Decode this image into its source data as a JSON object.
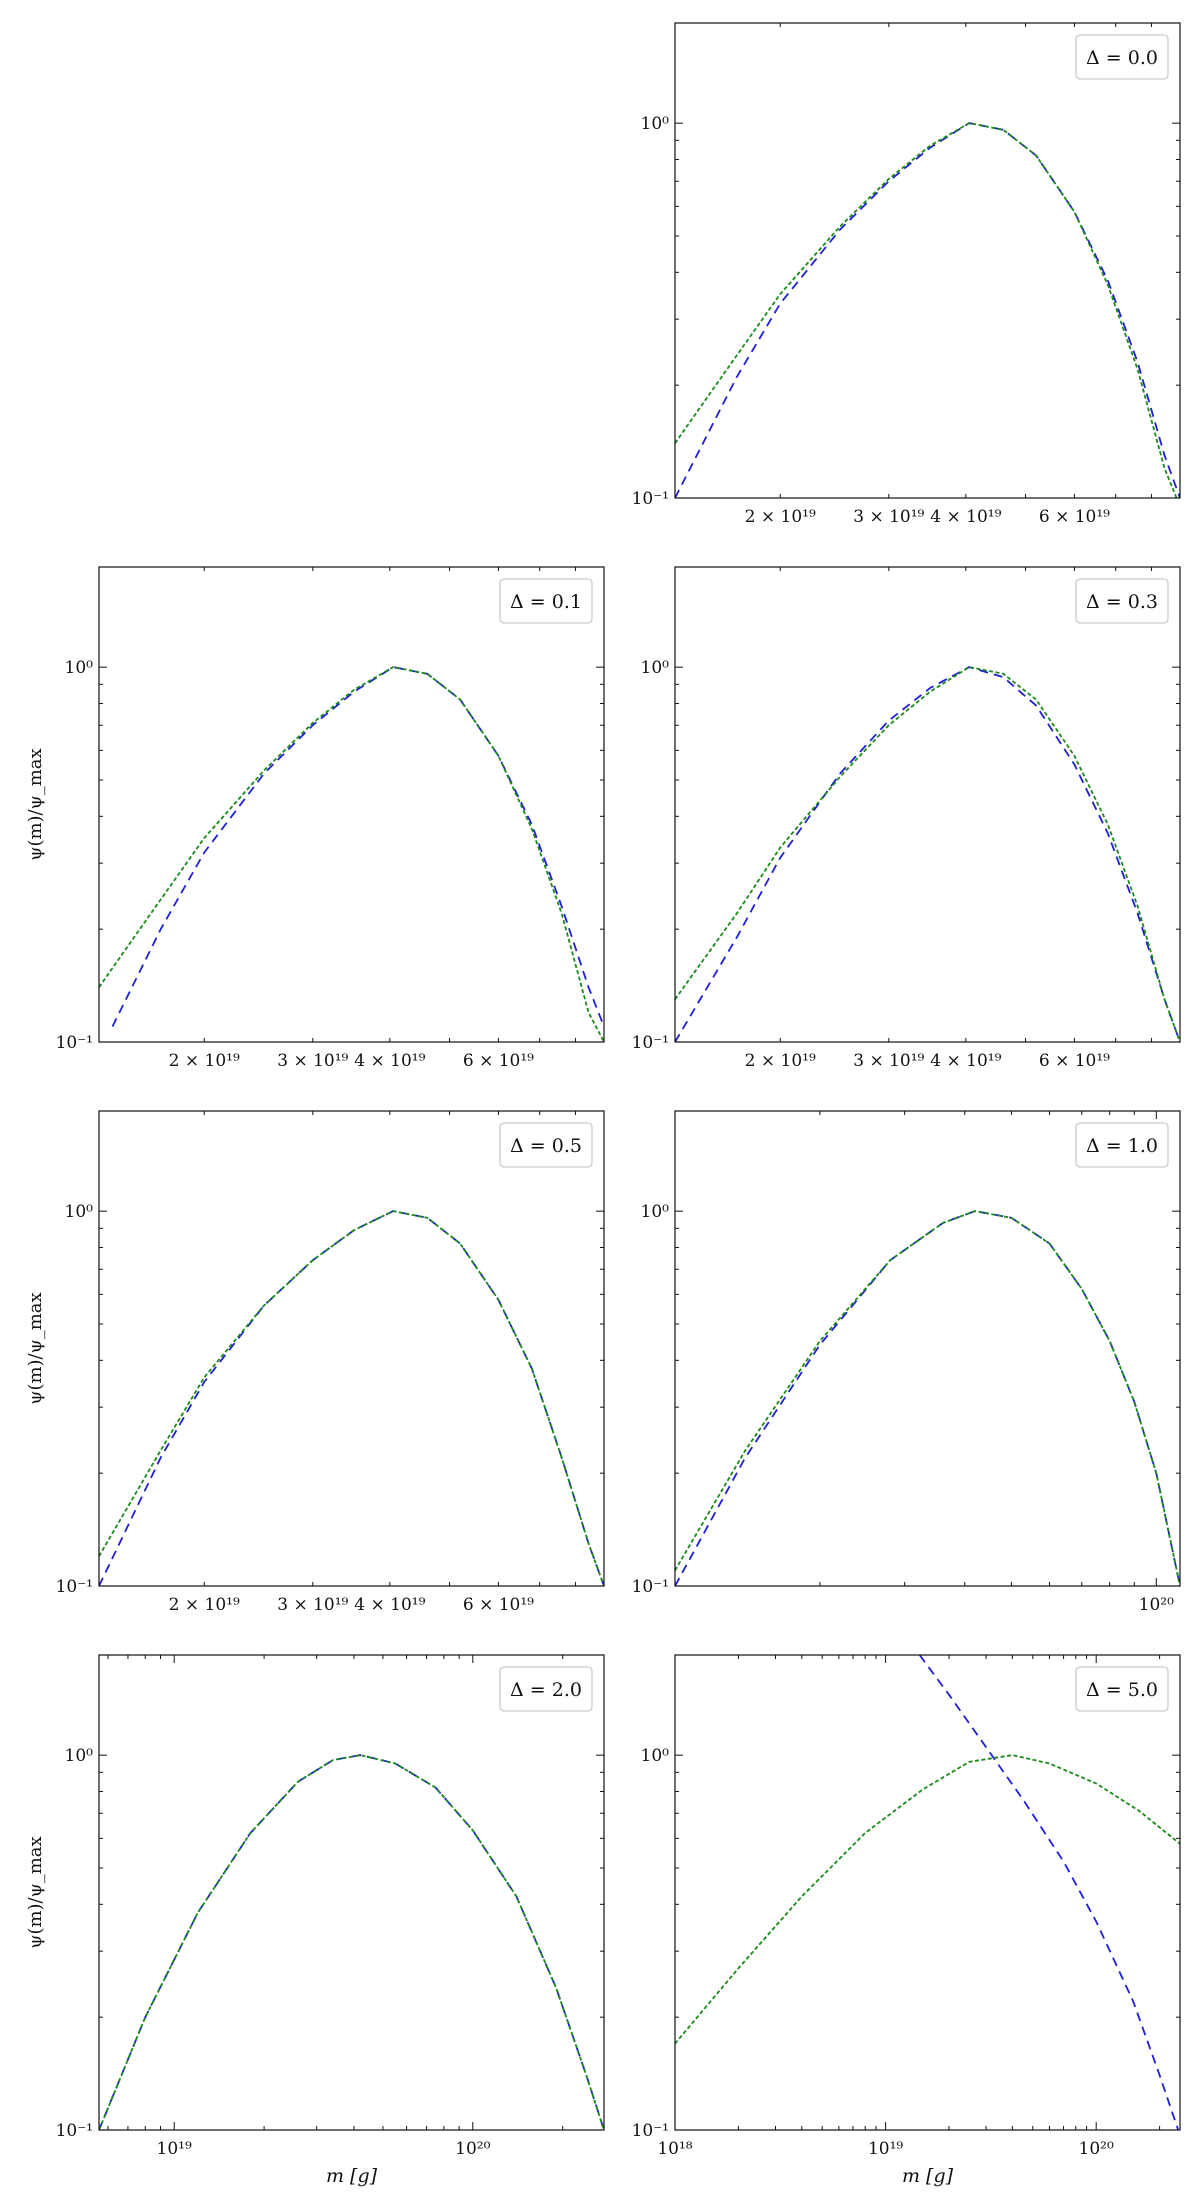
{
  "figure": {
    "ylabel": "ψ(m)/ψ_max",
    "xlabel": "m [g]"
  },
  "chart_data": [
    {
      "type": "line",
      "legend": "Δ = 0.0",
      "legend_position": "top-right",
      "xscale": "log",
      "yscale": "log",
      "xlim": [
        1.35e+19,
        8.9e+19
      ],
      "ylim": [
        0.1,
        1.85
      ],
      "show_ylabel": false,
      "show_xlabel": false,
      "xticks": [
        {
          "value": 2e+19,
          "label": "2 × 10¹⁹"
        },
        {
          "value": 3e+19,
          "label": "3 × 10¹⁹"
        },
        {
          "value": 4e+19,
          "label": "4 × 10¹⁹"
        },
        {
          "value": 6e+19,
          "label": "6 × 10¹⁹"
        }
      ],
      "yticks": [
        {
          "value": 0.1,
          "label": "10⁻¹"
        },
        {
          "value": 1,
          "label": "10⁰"
        }
      ],
      "series": [
        {
          "color": "#1f1fd6",
          "dash": "long",
          "x": [
            1.35e+19,
            1.7e+19,
            2e+19,
            2.5e+19,
            3e+19,
            3.5e+19,
            4.05e+19,
            4.6e+19,
            5.2e+19,
            6e+19,
            6.8e+19,
            7.6e+19,
            8.4e+19,
            8.9e+19
          ],
          "y": [
            0.1,
            0.21,
            0.33,
            0.52,
            0.7,
            0.86,
            1.0,
            0.96,
            0.82,
            0.58,
            0.38,
            0.23,
            0.13,
            0.1
          ]
        },
        {
          "color": "#1a8a1a",
          "dash": "short",
          "x": [
            1.35e+19,
            1.7e+19,
            2e+19,
            2.5e+19,
            3e+19,
            3.5e+19,
            4.05e+19,
            4.6e+19,
            5.2e+19,
            6e+19,
            6.8e+19,
            7.6e+19,
            8.4e+19,
            8.9e+19
          ],
          "y": [
            0.14,
            0.24,
            0.35,
            0.53,
            0.71,
            0.87,
            1.0,
            0.96,
            0.82,
            0.58,
            0.37,
            0.22,
            0.12,
            0.095
          ]
        }
      ]
    },
    {
      "type": "line",
      "legend": "Δ = 0.1",
      "legend_position": "top-right",
      "xscale": "log",
      "yscale": "log",
      "xlim": [
        1.35e+19,
        8.9e+19
      ],
      "ylim": [
        0.1,
        1.85
      ],
      "show_ylabel": true,
      "show_xlabel": false,
      "xticks": [
        {
          "value": 2e+19,
          "label": "2 × 10¹⁹"
        },
        {
          "value": 3e+19,
          "label": "3 × 10¹⁹"
        },
        {
          "value": 4e+19,
          "label": "4 × 10¹⁹"
        },
        {
          "value": 6e+19,
          "label": "6 × 10¹⁹"
        }
      ],
      "yticks": [
        {
          "value": 0.1,
          "label": "10⁻¹"
        },
        {
          "value": 1,
          "label": "10⁰"
        }
      ],
      "series": [
        {
          "color": "#1f1fd6",
          "dash": "long",
          "x": [
            1.42e+19,
            1.7e+19,
            2e+19,
            2.5e+19,
            3e+19,
            3.5e+19,
            4.05e+19,
            4.6e+19,
            5.2e+19,
            6e+19,
            6.8e+19,
            7.6e+19,
            8.4e+19,
            8.9e+19
          ],
          "y": [
            0.11,
            0.2,
            0.32,
            0.52,
            0.7,
            0.86,
            1.0,
            0.96,
            0.82,
            0.58,
            0.38,
            0.23,
            0.14,
            0.11
          ]
        },
        {
          "color": "#1a8a1a",
          "dash": "short",
          "x": [
            1.35e+19,
            1.7e+19,
            2e+19,
            2.5e+19,
            3e+19,
            3.5e+19,
            4.05e+19,
            4.6e+19,
            5.2e+19,
            6e+19,
            6.8e+19,
            7.6e+19,
            8.4e+19,
            8.9e+19
          ],
          "y": [
            0.14,
            0.24,
            0.35,
            0.53,
            0.71,
            0.87,
            1.0,
            0.96,
            0.82,
            0.58,
            0.37,
            0.22,
            0.12,
            0.1
          ]
        }
      ]
    },
    {
      "type": "line",
      "legend": "Δ = 0.3",
      "legend_position": "top-right",
      "xscale": "log",
      "yscale": "log",
      "xlim": [
        1.35e+19,
        8.9e+19
      ],
      "ylim": [
        0.1,
        1.85
      ],
      "show_ylabel": false,
      "show_xlabel": false,
      "xticks": [
        {
          "value": 2e+19,
          "label": "2 × 10¹⁹"
        },
        {
          "value": 3e+19,
          "label": "3 × 10¹⁹"
        },
        {
          "value": 4e+19,
          "label": "4 × 10¹⁹"
        },
        {
          "value": 6e+19,
          "label": "6 × 10¹⁹"
        }
      ],
      "yticks": [
        {
          "value": 0.1,
          "label": "10⁻¹"
        },
        {
          "value": 1,
          "label": "10⁰"
        }
      ],
      "series": [
        {
          "color": "#1f1fd6",
          "dash": "long",
          "x": [
            1.35e+19,
            1.7e+19,
            2e+19,
            2.5e+19,
            3e+19,
            3.5e+19,
            4.05e+19,
            4.6e+19,
            5.2e+19,
            6e+19,
            6.8e+19,
            7.6e+19,
            8.4e+19,
            8.9e+19
          ],
          "y": [
            0.1,
            0.19,
            0.31,
            0.52,
            0.72,
            0.88,
            1.0,
            0.94,
            0.79,
            0.55,
            0.36,
            0.22,
            0.13,
            0.1
          ]
        },
        {
          "color": "#1a8a1a",
          "dash": "short",
          "x": [
            1.35e+19,
            1.7e+19,
            2e+19,
            2.5e+19,
            3e+19,
            3.5e+19,
            4.05e+19,
            4.6e+19,
            5.2e+19,
            6e+19,
            6.8e+19,
            7.6e+19,
            8.4e+19,
            8.9e+19
          ],
          "y": [
            0.13,
            0.22,
            0.33,
            0.51,
            0.7,
            0.86,
            1.0,
            0.96,
            0.82,
            0.58,
            0.38,
            0.23,
            0.13,
            0.1
          ]
        }
      ]
    },
    {
      "type": "line",
      "legend": "Δ = 0.5",
      "legend_position": "top-right",
      "xscale": "log",
      "yscale": "log",
      "xlim": [
        1.35e+19,
        8.9e+19
      ],
      "ylim": [
        0.1,
        1.85
      ],
      "show_ylabel": true,
      "show_xlabel": false,
      "xticks": [
        {
          "value": 2e+19,
          "label": "2 × 10¹⁹"
        },
        {
          "value": 3e+19,
          "label": "3 × 10¹⁹"
        },
        {
          "value": 4e+19,
          "label": "4 × 10¹⁹"
        },
        {
          "value": 6e+19,
          "label": "6 × 10¹⁹"
        }
      ],
      "yticks": [
        {
          "value": 0.1,
          "label": "10⁻¹"
        },
        {
          "value": 1,
          "label": "10⁰"
        }
      ],
      "series": [
        {
          "color": "#1f1fd6",
          "dash": "long",
          "x": [
            1.35e+19,
            1.7e+19,
            2e+19,
            2.5e+19,
            3e+19,
            3.5e+19,
            4.05e+19,
            4.6e+19,
            5.2e+19,
            6e+19,
            6.8e+19,
            7.6e+19,
            8.4e+19,
            8.9e+19
          ],
          "y": [
            0.1,
            0.22,
            0.35,
            0.56,
            0.74,
            0.89,
            1.0,
            0.96,
            0.82,
            0.58,
            0.38,
            0.22,
            0.13,
            0.1
          ]
        },
        {
          "color": "#1a8a1a",
          "dash": "short",
          "x": [
            1.35e+19,
            1.7e+19,
            2e+19,
            2.5e+19,
            3e+19,
            3.5e+19,
            4.05e+19,
            4.6e+19,
            5.2e+19,
            6e+19,
            6.8e+19,
            7.6e+19,
            8.4e+19,
            8.9e+19
          ],
          "y": [
            0.12,
            0.23,
            0.36,
            0.56,
            0.74,
            0.89,
            1.0,
            0.96,
            0.82,
            0.58,
            0.38,
            0.22,
            0.13,
            0.1
          ]
        }
      ]
    },
    {
      "type": "line",
      "legend": "Δ = 1.0",
      "legend_position": "top-right",
      "xscale": "log",
      "yscale": "log",
      "xlim": [
        1e+19,
        1.12e+20
      ],
      "ylim": [
        0.1,
        1.85
      ],
      "show_ylabel": false,
      "show_xlabel": false,
      "xticks": [
        {
          "value": 1e+20,
          "label": "10²⁰"
        }
      ],
      "yticks": [
        {
          "value": 0.1,
          "label": "10⁻¹"
        },
        {
          "value": 1,
          "label": "10⁰"
        }
      ],
      "series": [
        {
          "color": "#1f1fd6",
          "dash": "long",
          "x": [
            1e+19,
            1.4e+19,
            2e+19,
            2.8e+19,
            3.6e+19,
            4.2e+19,
            5e+19,
            6e+19,
            7e+19,
            8e+19,
            9e+19,
            1e+20,
            1.12e+20
          ],
          "y": [
            0.1,
            0.22,
            0.44,
            0.74,
            0.93,
            1.0,
            0.96,
            0.82,
            0.62,
            0.45,
            0.31,
            0.2,
            0.1
          ]
        },
        {
          "color": "#1a8a1a",
          "dash": "short",
          "x": [
            1e+19,
            1.4e+19,
            2e+19,
            2.8e+19,
            3.6e+19,
            4.2e+19,
            5e+19,
            6e+19,
            7e+19,
            8e+19,
            9e+19,
            1e+20,
            1.12e+20
          ],
          "y": [
            0.11,
            0.23,
            0.45,
            0.74,
            0.93,
            1.0,
            0.96,
            0.82,
            0.62,
            0.45,
            0.31,
            0.2,
            0.1
          ]
        }
      ]
    },
    {
      "type": "line",
      "legend": "Δ = 2.0",
      "legend_position": "top-right",
      "xscale": "log",
      "yscale": "log",
      "xlim": [
        5.6e+18,
        2.75e+20
      ],
      "ylim": [
        0.1,
        1.85
      ],
      "show_ylabel": true,
      "show_xlabel": true,
      "xticks": [
        {
          "value": 1e+19,
          "label": "10¹⁹"
        },
        {
          "value": 1e+20,
          "label": "10²⁰"
        }
      ],
      "yticks": [
        {
          "value": 0.1,
          "label": "10⁻¹"
        },
        {
          "value": 1,
          "label": "10⁰"
        }
      ],
      "series": [
        {
          "color": "#1f1fd6",
          "dash": "long",
          "x": [
            5.6e+18,
            8e+18,
            1.2e+19,
            1.8e+19,
            2.6e+19,
            3.4e+19,
            4.2e+19,
            5.5e+19,
            7.5e+19,
            1e+20,
            1.4e+20,
            1.9e+20,
            2.4e+20,
            2.75e+20
          ],
          "y": [
            0.1,
            0.2,
            0.38,
            0.62,
            0.85,
            0.97,
            1.0,
            0.95,
            0.82,
            0.63,
            0.42,
            0.24,
            0.14,
            0.1
          ]
        },
        {
          "color": "#1a8a1a",
          "dash": "short",
          "x": [
            5.6e+18,
            8e+18,
            1.2e+19,
            1.8e+19,
            2.6e+19,
            3.4e+19,
            4.2e+19,
            5.5e+19,
            7.5e+19,
            1e+20,
            1.4e+20,
            1.9e+20,
            2.4e+20,
            2.75e+20
          ],
          "y": [
            0.1,
            0.2,
            0.38,
            0.62,
            0.85,
            0.97,
            1.0,
            0.95,
            0.82,
            0.63,
            0.42,
            0.24,
            0.14,
            0.1
          ]
        }
      ]
    },
    {
      "type": "line",
      "legend": "Δ = 5.0",
      "legend_position": "top-right",
      "xscale": "log",
      "yscale": "log",
      "xlim": [
        1e+18,
        2.5e+20
      ],
      "ylim": [
        0.1,
        1.85
      ],
      "show_ylabel": false,
      "show_xlabel": true,
      "xticks": [
        {
          "value": 1e+18,
          "label": "10¹⁸"
        },
        {
          "value": 1e+19,
          "label": "10¹⁹"
        },
        {
          "value": 1e+20,
          "label": "10²⁰"
        }
      ],
      "yticks": [
        {
          "value": 0.1,
          "label": "10⁻¹"
        },
        {
          "value": 1,
          "label": "10⁰"
        }
      ],
      "series": [
        {
          "color": "#1f1fd6",
          "dash": "long",
          "x": [
            1.45e+19,
            2e+19,
            3e+19,
            4.5e+19,
            7e+19,
            1e+20,
            1.5e+20,
            2e+20,
            2.45e+20
          ],
          "y": [
            1.85,
            1.45,
            1.05,
            0.76,
            0.52,
            0.36,
            0.22,
            0.14,
            0.1
          ]
        },
        {
          "color": "#1a8a1a",
          "dash": "short",
          "x": [
            1e+18,
            2e+18,
            4e+18,
            8e+18,
            1.5e+19,
            2.5e+19,
            4e+19,
            6e+19,
            1e+20,
            1.6e+20,
            2.5e+20
          ],
          "y": [
            0.17,
            0.27,
            0.42,
            0.62,
            0.81,
            0.96,
            1.0,
            0.95,
            0.84,
            0.71,
            0.58
          ]
        }
      ]
    }
  ]
}
